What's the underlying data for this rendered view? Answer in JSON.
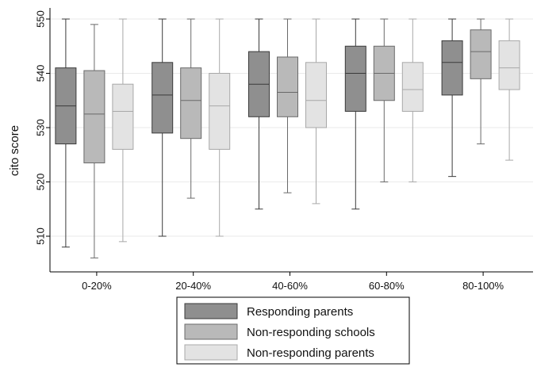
{
  "chart_data": {
    "type": "box",
    "ylabel": "cito score",
    "xlabel": "",
    "ylim": [
      502,
      551
    ],
    "yticks": [
      510,
      520,
      530,
      540,
      550
    ],
    "grid": true,
    "legend_position": "bottom",
    "categories": [
      "0-20%",
      "20-40%",
      "40-60%",
      "60-80%",
      "80-100%"
    ],
    "series": [
      {
        "name": "Responding parents",
        "color": "#8f8f8f",
        "whisker_color": "#3a3a3a",
        "boxes": [
          {
            "min": 508,
            "q1": 527,
            "median": 534,
            "q3": 541,
            "max": 550
          },
          {
            "min": 510,
            "q1": 529,
            "median": 536,
            "q3": 542,
            "max": 550
          },
          {
            "min": 515,
            "q1": 532,
            "median": 538,
            "q3": 544,
            "max": 550
          },
          {
            "min": 515,
            "q1": 533,
            "median": 540,
            "q3": 545,
            "max": 550
          },
          {
            "min": 521,
            "q1": 536,
            "median": 542,
            "q3": 546,
            "max": 550
          }
        ]
      },
      {
        "name": "Non-responding schools",
        "color": "#b9b9b9",
        "whisker_color": "#6a6a6a",
        "boxes": [
          {
            "min": 506,
            "q1": 523.5,
            "median": 532.5,
            "q3": 540.5,
            "max": 549
          },
          {
            "min": 517,
            "q1": 528,
            "median": 535,
            "q3": 541,
            "max": 550
          },
          {
            "min": 518,
            "q1": 532,
            "median": 536.5,
            "q3": 543,
            "max": 550
          },
          {
            "min": 520,
            "q1": 535,
            "median": 540,
            "q3": 545,
            "max": 550
          },
          {
            "min": 527,
            "q1": 539,
            "median": 544,
            "q3": 548,
            "max": 550
          }
        ]
      },
      {
        "name": "Non-responding parents",
        "color": "#e3e3e3",
        "whisker_color": "#a8a8a8",
        "boxes": [
          {
            "min": 509,
            "q1": 526,
            "median": 533,
            "q3": 538,
            "max": 550
          },
          {
            "min": 510,
            "q1": 526,
            "median": 534,
            "q3": 540,
            "max": 550
          },
          {
            "min": 516,
            "q1": 530,
            "median": 535,
            "q3": 542,
            "max": 550
          },
          {
            "min": 520,
            "q1": 533,
            "median": 537,
            "q3": 542,
            "max": 550
          },
          {
            "min": 524,
            "q1": 537,
            "median": 541,
            "q3": 546,
            "max": 550
          }
        ]
      }
    ]
  }
}
